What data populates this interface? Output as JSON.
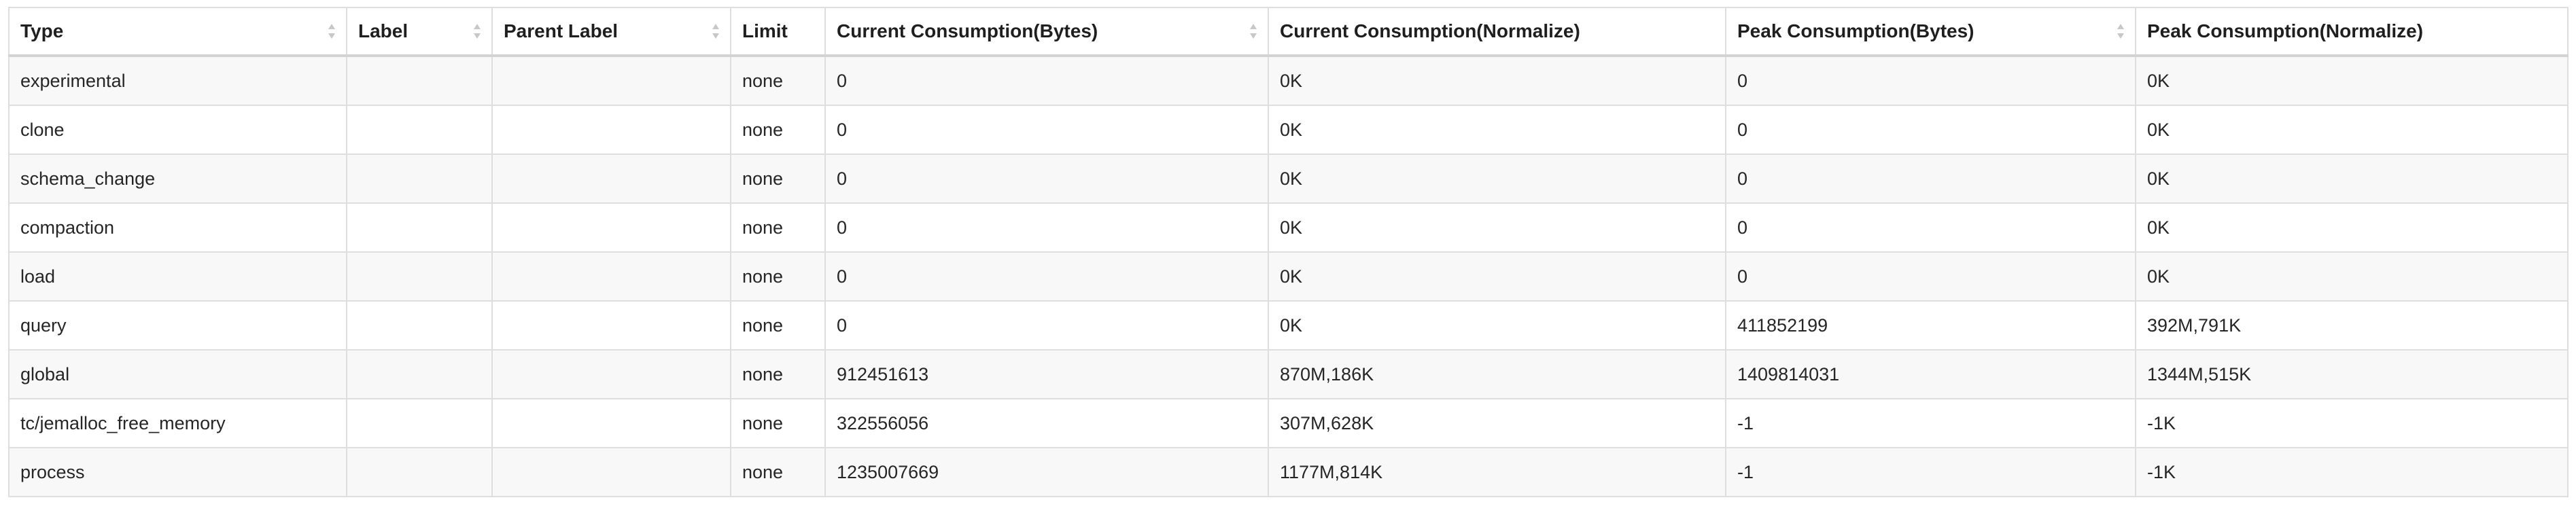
{
  "table": {
    "headers": [
      {
        "label": "Type",
        "sortable": true
      },
      {
        "label": "Label",
        "sortable": true
      },
      {
        "label": "Parent Label",
        "sortable": true
      },
      {
        "label": "Limit",
        "sortable": false
      },
      {
        "label": "Current Consumption(Bytes)",
        "sortable": true
      },
      {
        "label": "Current Consumption(Normalize)",
        "sortable": false
      },
      {
        "label": "Peak Consumption(Bytes)",
        "sortable": true
      },
      {
        "label": "Peak Consumption(Normalize)",
        "sortable": false
      }
    ],
    "rows": [
      [
        "experimental",
        "",
        "",
        "none",
        "0",
        "0K",
        "0",
        "0K"
      ],
      [
        "clone",
        "",
        "",
        "none",
        "0",
        "0K",
        "0",
        "0K"
      ],
      [
        "schema_change",
        "",
        "",
        "none",
        "0",
        "0K",
        "0",
        "0K"
      ],
      [
        "compaction",
        "",
        "",
        "none",
        "0",
        "0K",
        "0",
        "0K"
      ],
      [
        "load",
        "",
        "",
        "none",
        "0",
        "0K",
        "0",
        "0K"
      ],
      [
        "query",
        "",
        "",
        "none",
        "0",
        "0K",
        "411852199",
        "392M,791K"
      ],
      [
        "global",
        "",
        "",
        "none",
        "912451613",
        "870M,186K",
        "1409814031",
        "1344M,515K"
      ],
      [
        "tc/jemalloc_free_memory",
        "",
        "",
        "none",
        "322556056",
        "307M,628K",
        "-1",
        "-1K"
      ],
      [
        "process",
        "",
        "",
        "none",
        "1235007669",
        "1177M,814K",
        "-1",
        "-1K"
      ]
    ]
  },
  "icons": {
    "sort": "sort-arrows-icon"
  },
  "colors": {
    "border": "#dedede",
    "stripe": "#f8f8f8",
    "sort_icon": "#c8c8c8"
  }
}
